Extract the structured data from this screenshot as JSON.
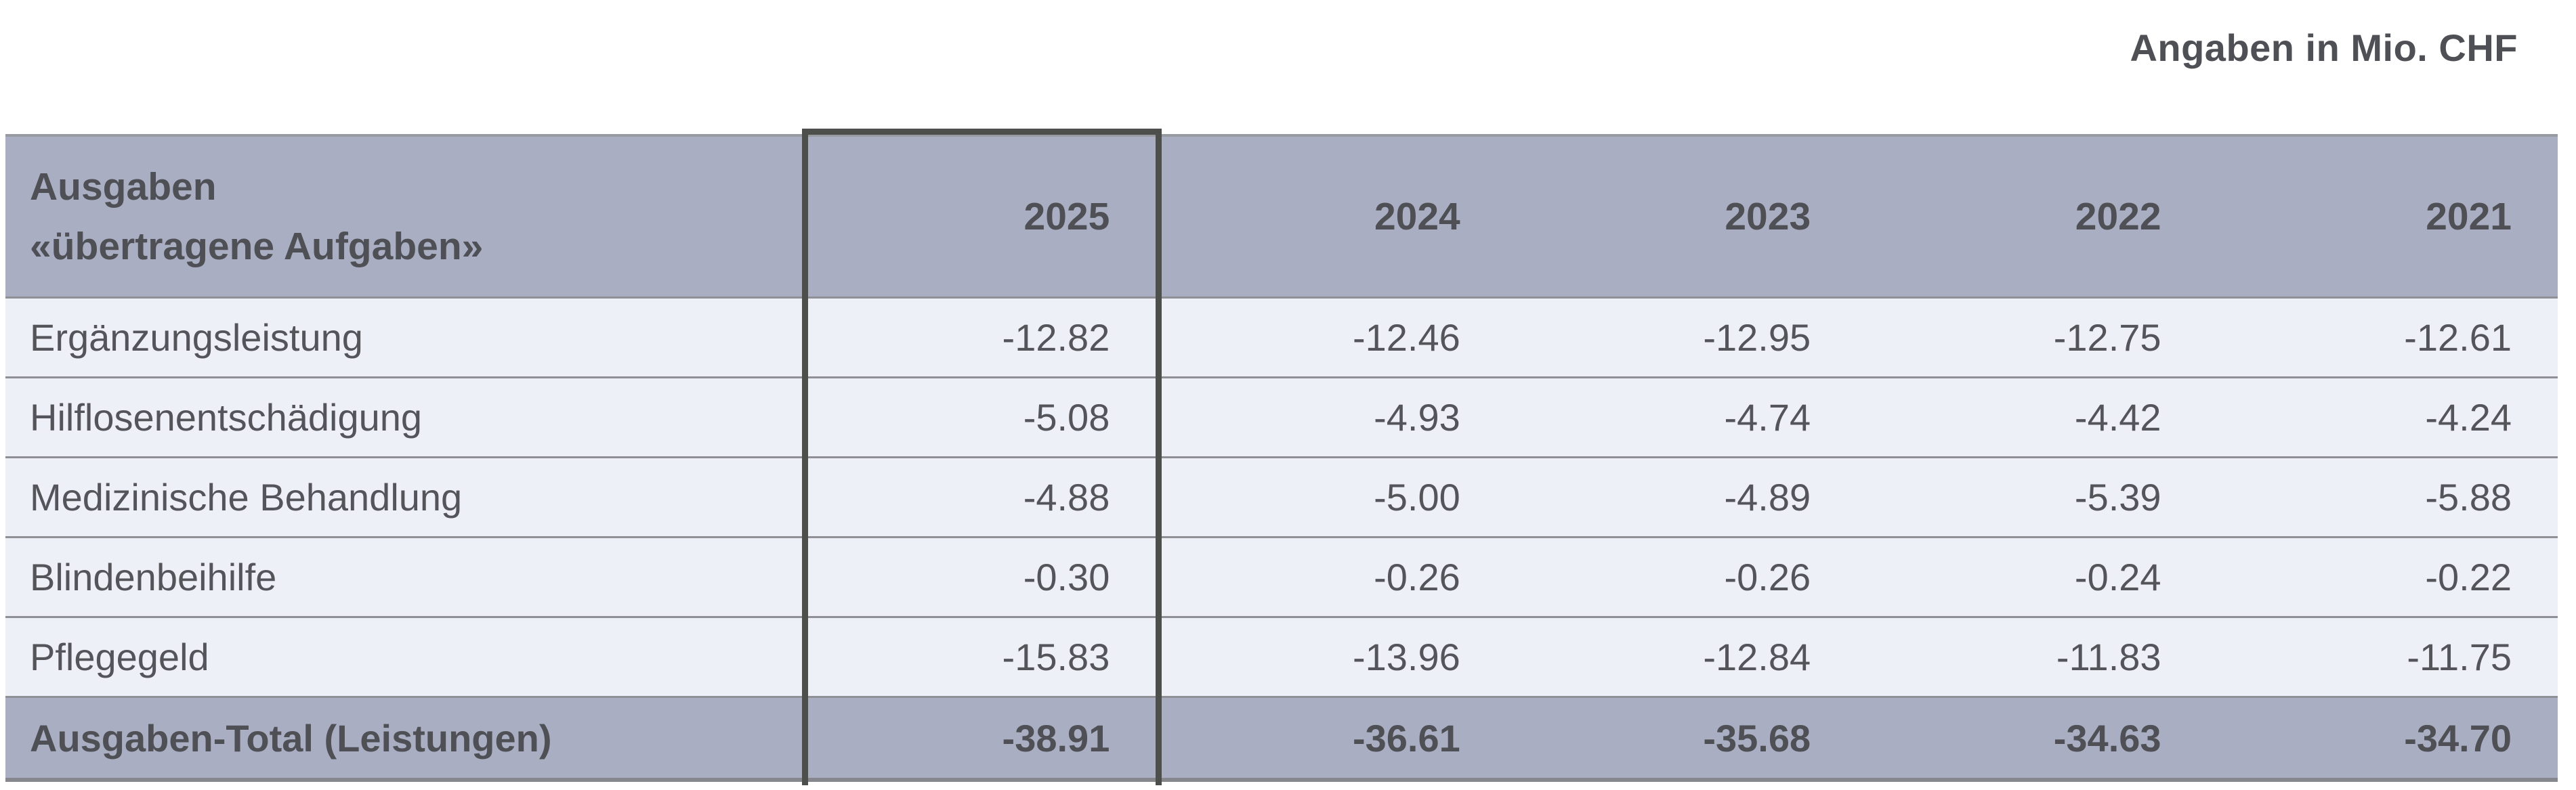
{
  "note": "Angaben in Mio. CHF",
  "table": {
    "header": {
      "label_line1": "Ausgaben",
      "label_line2": "«übertragene Aufgaben»",
      "years": [
        "2025",
        "2024",
        "2023",
        "2022",
        "2021"
      ],
      "highlighted_year": "2025"
    },
    "rows": [
      {
        "label": "Ergänzungsleistung",
        "values": [
          "-12.82",
          "-12.46",
          "-12.95",
          "-12.75",
          "-12.61"
        ]
      },
      {
        "label": "Hilflosenentschädigung",
        "values": [
          "-5.08",
          "-4.93",
          "-4.74",
          "-4.42",
          "-4.24"
        ]
      },
      {
        "label": "Medizinische Behandlung",
        "values": [
          "-4.88",
          "-5.00",
          "-4.89",
          "-5.39",
          "-5.88"
        ]
      },
      {
        "label": "Blindenbeihilfe",
        "values": [
          "-0.30",
          "-0.26",
          "-0.26",
          "-0.24",
          "-0.22"
        ]
      },
      {
        "label": "Pflegegeld",
        "values": [
          "-15.83",
          "-13.96",
          "-12.84",
          "-11.83",
          "-11.75"
        ]
      }
    ],
    "total": {
      "label": "Ausgaben-Total (Leistungen)",
      "values": [
        "-38.91",
        "-36.61",
        "-35.68",
        "-34.63",
        "-34.70"
      ]
    }
  },
  "colors": {
    "header_bg": "#a9aec2",
    "row_bg": "#eef0f7",
    "text": "#54555a",
    "highlight_border": "#4d4f4c",
    "separator": "#8e9095",
    "bottom_border": "#85878c"
  },
  "chart_data": {
    "type": "table",
    "title": "Ausgaben «übertragene Aufgaben»",
    "unit": "Mio. CHF",
    "categories": [
      "2025",
      "2024",
      "2023",
      "2022",
      "2021"
    ],
    "series": [
      {
        "name": "Ergänzungsleistung",
        "values": [
          -12.82,
          -12.46,
          -12.95,
          -12.75,
          -12.61
        ]
      },
      {
        "name": "Hilflosenentschädigung",
        "values": [
          -5.08,
          -4.93,
          -4.74,
          -4.42,
          -4.24
        ]
      },
      {
        "name": "Medizinische Behandlung",
        "values": [
          -4.88,
          -5.0,
          -4.89,
          -5.39,
          -5.88
        ]
      },
      {
        "name": "Blindenbeihilfe",
        "values": [
          -0.3,
          -0.26,
          -0.26,
          -0.24,
          -0.22
        ]
      },
      {
        "name": "Pflegegeld",
        "values": [
          -15.83,
          -13.96,
          -12.84,
          -11.83,
          -11.75
        ]
      },
      {
        "name": "Ausgaben-Total (Leistungen)",
        "values": [
          -38.91,
          -36.61,
          -35.68,
          -34.63,
          -34.7
        ]
      }
    ]
  }
}
